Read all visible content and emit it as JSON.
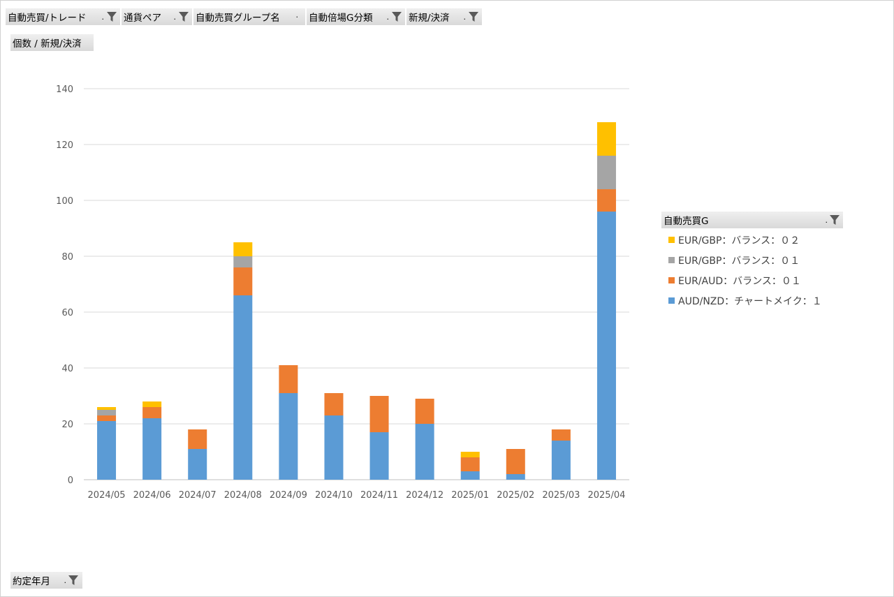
{
  "filters": [
    {
      "label": "自動売買/トレード",
      "filtered": true
    },
    {
      "label": "通貨ペア",
      "filtered": true
    },
    {
      "label": "自動売買グループ名",
      "filtered": false
    },
    {
      "label": "自動倍場G分類",
      "filtered": true
    },
    {
      "label": "新規/決済",
      "filtered": true
    }
  ],
  "value_field": "個数 / 新規/決済",
  "axis_field": "約定年月",
  "legend_field": "自動売買G",
  "colors": {
    "blue": "#5B9BD5",
    "orange": "#ED7D31",
    "gray": "#A5A5A5",
    "yellow": "#FFC000"
  },
  "chart_data": {
    "type": "bar",
    "stacked": true,
    "categories": [
      "2024/05",
      "2024/06",
      "2024/07",
      "2024/08",
      "2024/09",
      "2024/10",
      "2024/11",
      "2024/12",
      "2025/01",
      "2025/02",
      "2025/03",
      "2025/04"
    ],
    "ylim": [
      0,
      140
    ],
    "yticks": [
      0,
      20,
      40,
      60,
      80,
      100,
      120,
      140
    ],
    "grid": true,
    "legend_position": "right",
    "series": [
      {
        "name": "AUD/NZD：チャートメイク：１",
        "color": "#5B9BD5",
        "values": [
          21,
          22,
          11,
          66,
          31,
          23,
          17,
          20,
          3,
          2,
          14,
          96
        ]
      },
      {
        "name": "EUR/AUD：バランス：０１",
        "color": "#ED7D31",
        "values": [
          2,
          4,
          7,
          10,
          10,
          8,
          13,
          9,
          5,
          9,
          4,
          8
        ]
      },
      {
        "name": "EUR/GBP：バランス：０１",
        "color": "#A5A5A5",
        "values": [
          2,
          0,
          0,
          4,
          0,
          0,
          0,
          0,
          0,
          0,
          0,
          12
        ]
      },
      {
        "name": "EUR/GBP：バランス：０２",
        "color": "#FFC000",
        "values": [
          1,
          2,
          0,
          5,
          0,
          0,
          0,
          0,
          2,
          0,
          0,
          12
        ]
      }
    ]
  }
}
